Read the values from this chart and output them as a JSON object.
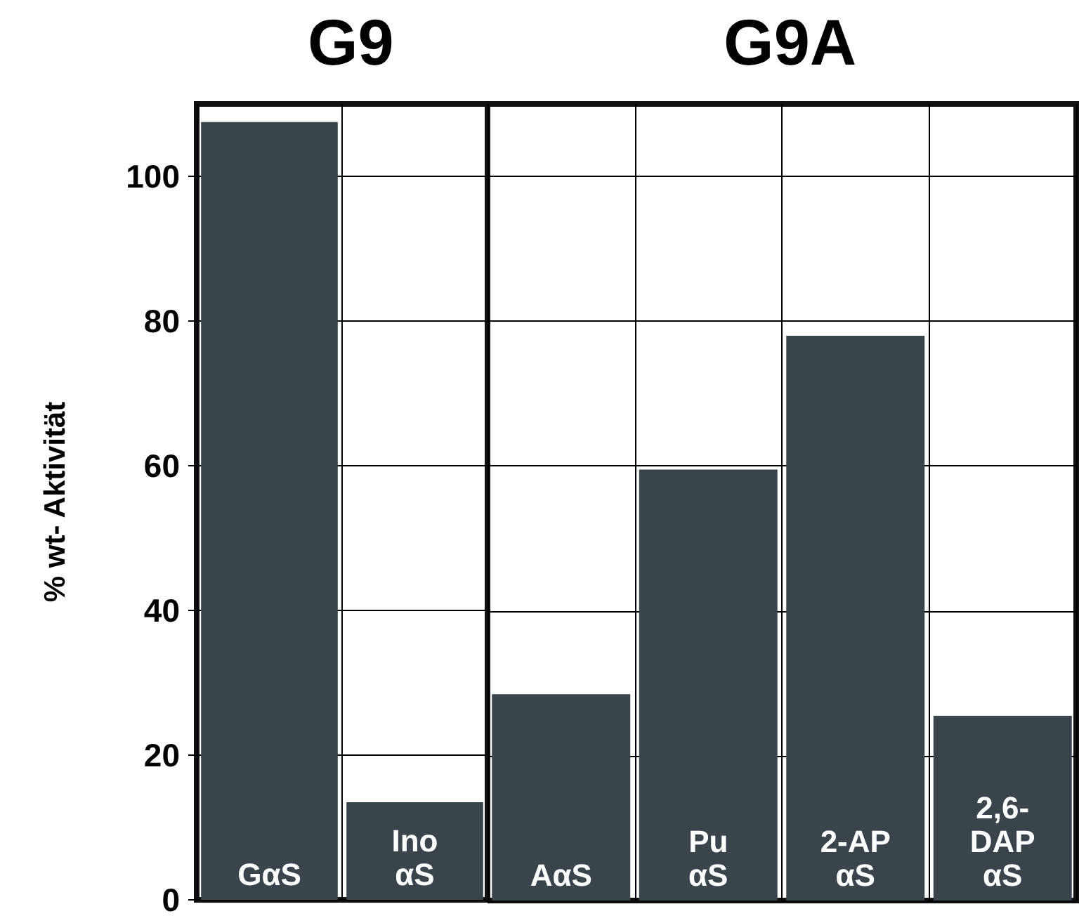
{
  "chart_data": [
    {
      "type": "bar",
      "title": "G9",
      "ylabel": "% wt- Aktivität",
      "categories": [
        "GαS",
        "Ino\nαS"
      ],
      "values": [
        107.5,
        13.5
      ],
      "color": "#3a454b",
      "ylim": [
        0,
        110
      ],
      "yticks": [
        0,
        20,
        40,
        60,
        80,
        100
      ],
      "grid": true
    },
    {
      "type": "bar",
      "title": "G9A",
      "categories": [
        "AαS",
        "Pu\nαS",
        "2-AP\nαS",
        "2,6-\nDAP\nαS"
      ],
      "values": [
        28.5,
        59.5,
        78,
        25.5
      ],
      "color": "#3a454b",
      "ylim": [
        0,
        110
      ],
      "yticks": [
        0,
        20,
        40,
        60,
        80,
        100
      ],
      "grid": true,
      "tick_labels": "x"
    }
  ]
}
